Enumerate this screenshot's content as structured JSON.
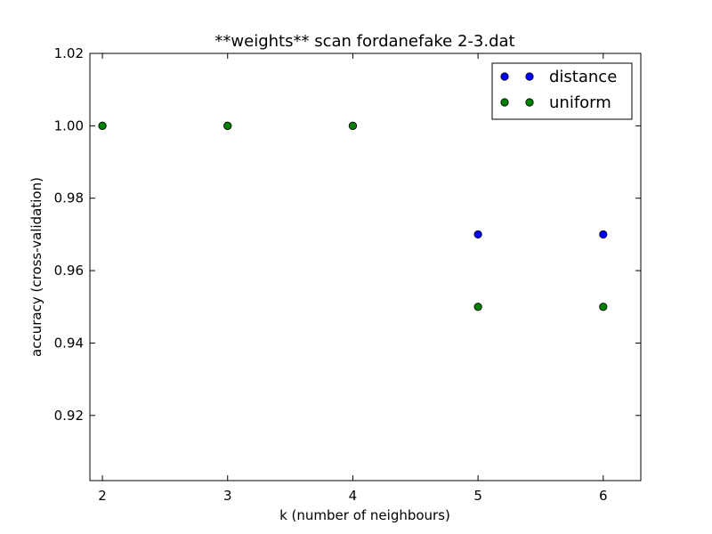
{
  "chart_data": {
    "type": "scatter",
    "title": "**weights** scan fordanefake 2-3.dat",
    "xlabel": "k (number of neighbours)",
    "ylabel": "accuracy (cross-validation)",
    "xlim": [
      1.9,
      6.3
    ],
    "ylim": [
      0.902,
      1.02
    ],
    "xticks": [
      2,
      3,
      4,
      5,
      6
    ],
    "xtick_labels": [
      "2",
      "3",
      "4",
      "5",
      "6"
    ],
    "yticks": [
      0.92,
      0.94,
      0.96,
      0.98,
      1.0,
      1.02
    ],
    "ytick_labels": [
      "0.92",
      "0.94",
      "0.96",
      "0.98",
      "1.00",
      "1.02"
    ],
    "grid": false,
    "legend_position": "top-right",
    "series": [
      {
        "name": "distance",
        "color": "#0000ff",
        "x": [
          2,
          3,
          4,
          5,
          6
        ],
        "y": [
          1.0,
          1.0,
          1.0,
          0.97,
          0.97
        ]
      },
      {
        "name": "uniform",
        "color": "#008000",
        "x": [
          2,
          3,
          4,
          5,
          6
        ],
        "y": [
          1.0,
          1.0,
          1.0,
          0.95,
          0.95
        ]
      }
    ]
  }
}
